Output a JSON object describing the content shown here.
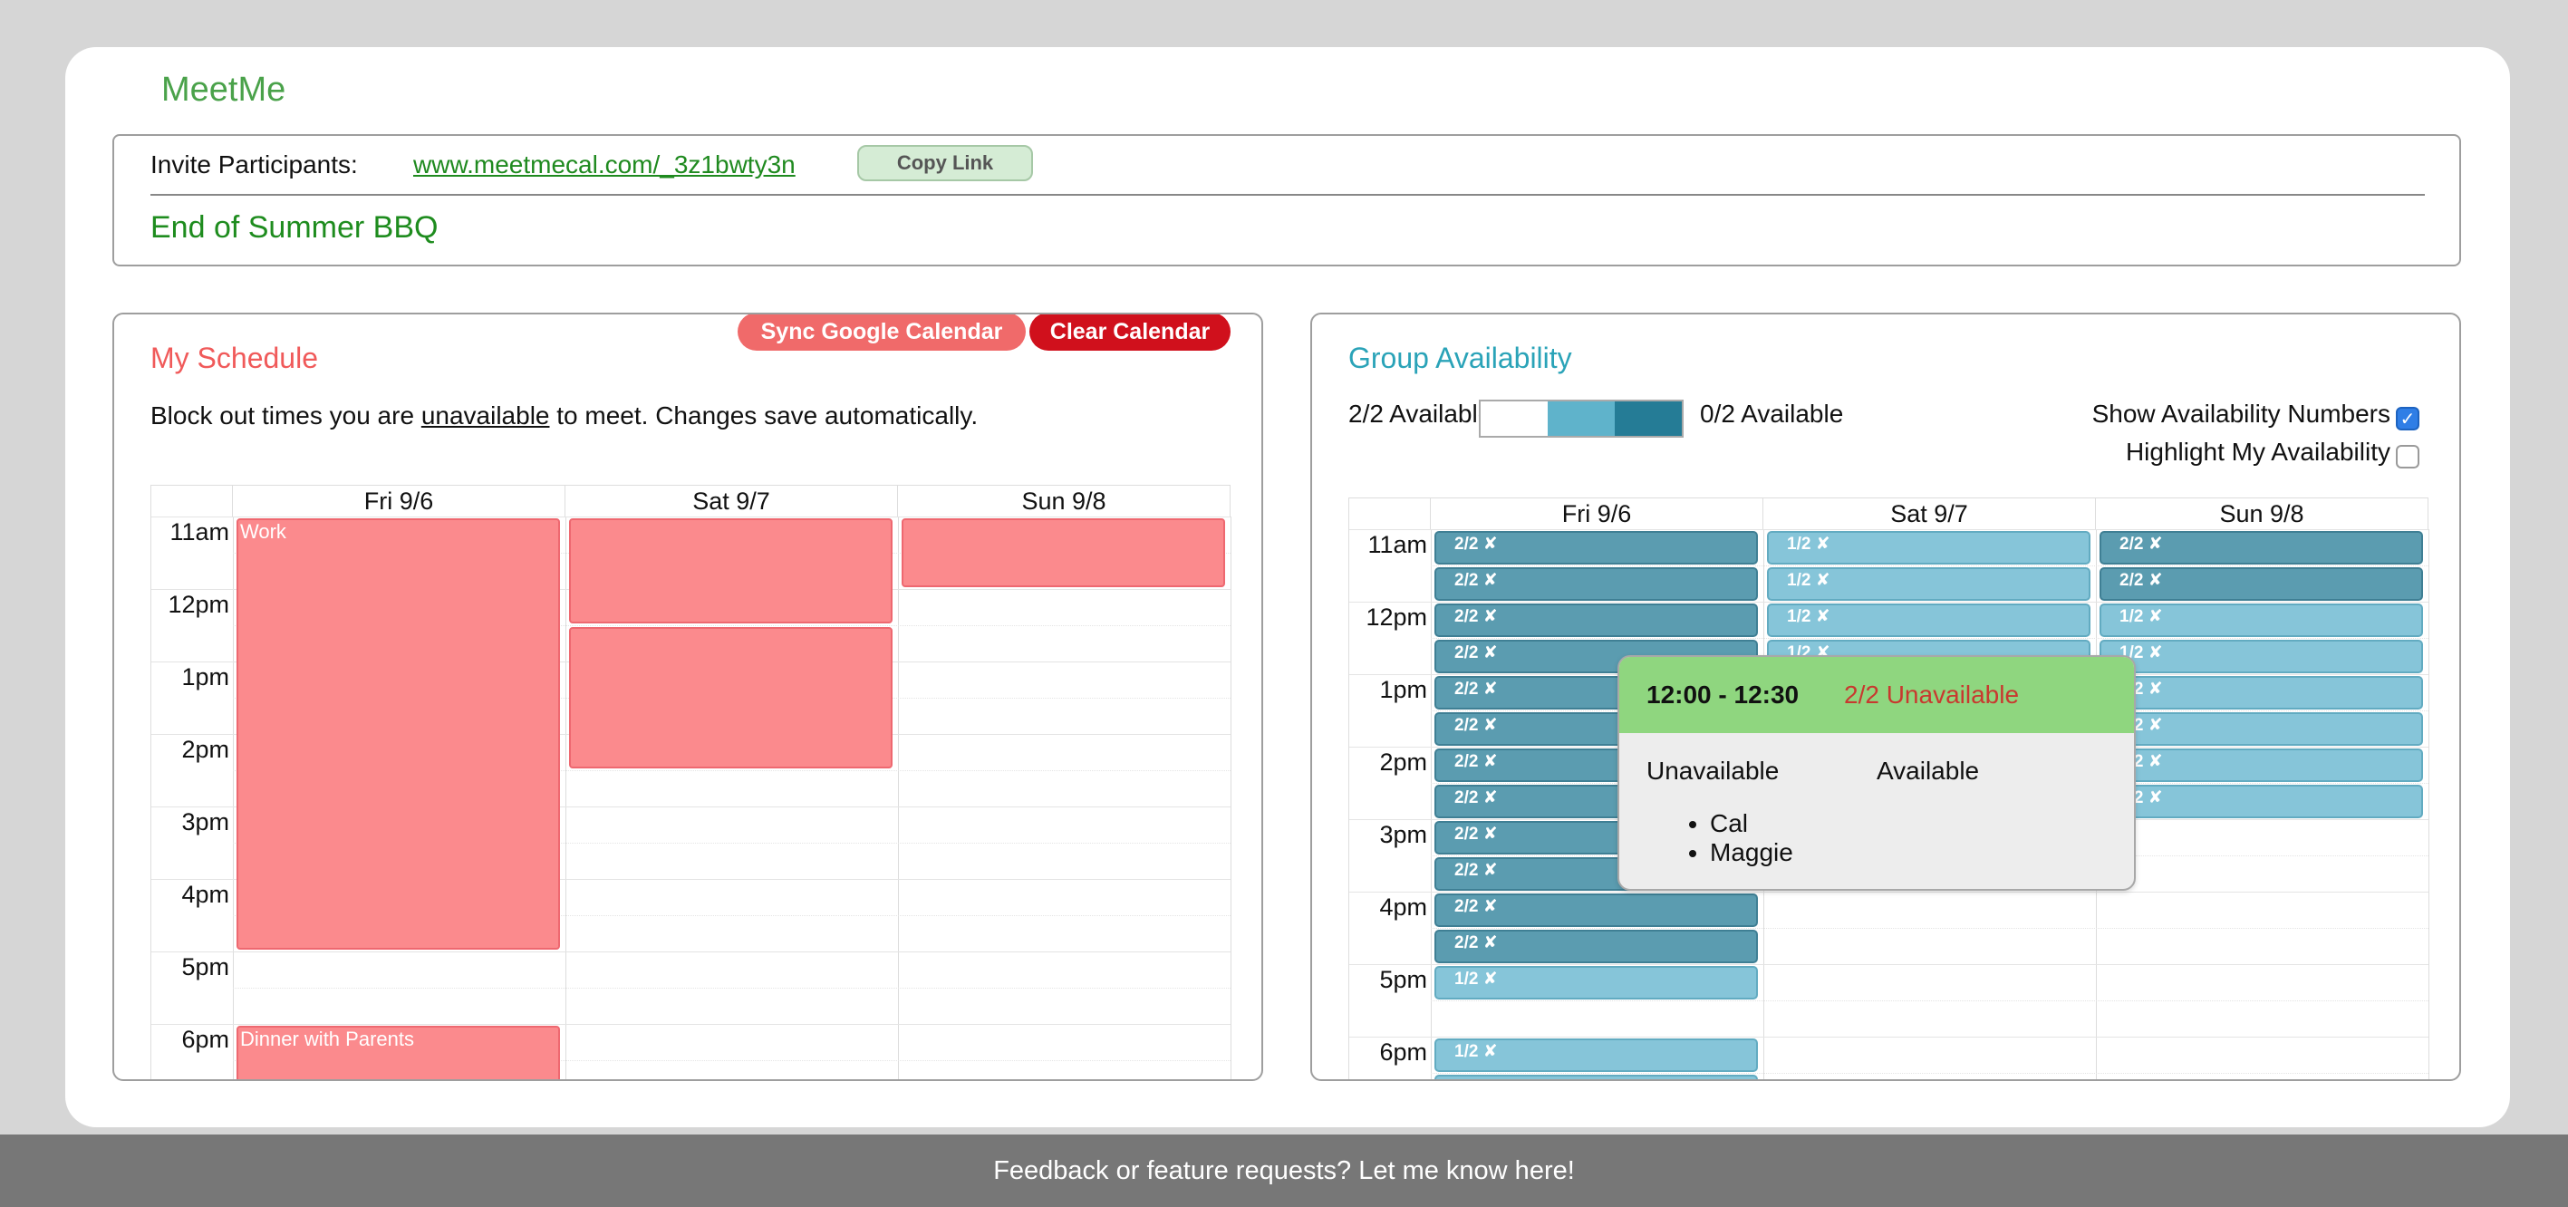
{
  "app": {
    "title": "MeetMe"
  },
  "invite": {
    "label": "Invite Participants:",
    "link": "www.meetmecal.com/_3z1bwty3n",
    "copy_label": "Copy Link"
  },
  "event": {
    "title": "End of Summer BBQ"
  },
  "schedule": {
    "title": "My Schedule",
    "sync_label": "Sync Google Calendar",
    "clear_label": "Clear Calendar",
    "instructions_pre": "Block out times you are ",
    "instructions_emph": "unavailable",
    "instructions_post": " to meet. Changes save automatically.",
    "days": [
      "Fri 9/6",
      "Sat 9/7",
      "Sun 9/8"
    ],
    "times": [
      "11am",
      "12pm",
      "1pm",
      "2pm",
      "3pm",
      "4pm",
      "5pm",
      "6pm"
    ],
    "blocks": [
      {
        "day": 0,
        "start": "11:00",
        "end": "17:00",
        "label": "Work"
      },
      {
        "day": 1,
        "start": "11:00",
        "end": "12:30",
        "label": ""
      },
      {
        "day": 1,
        "start": "12:30",
        "end": "14:30",
        "label": ""
      },
      {
        "day": 2,
        "start": "11:00",
        "end": "12:00",
        "label": ""
      },
      {
        "day": 0,
        "start": "18:00",
        "end": "",
        "label": "Dinner with Parents"
      }
    ]
  },
  "group": {
    "title": "Group Availability",
    "legend_left": "2/2 Available",
    "legend_right": "0/2 Available",
    "legend_colors": [
      "#ffffff",
      "#5fb3cb",
      "#257c96"
    ],
    "show_numbers_label": "Show Availability Numbers",
    "show_numbers_checked": true,
    "highlight_label": "Highlight My Availability",
    "highlight_checked": false,
    "days": [
      "Fri 9/6",
      "Sat 9/7",
      "Sun 9/8"
    ],
    "times": [
      "11am",
      "12pm",
      "1pm",
      "2pm",
      "3pm",
      "4pm",
      "5pm",
      "6pm"
    ],
    "slots": [
      {
        "day": 0,
        "start": "11:00",
        "label": "2/2 ✘"
      },
      {
        "day": 0,
        "start": "11:30",
        "label": "2/2 ✘"
      },
      {
        "day": 0,
        "start": "12:00",
        "label": "2/2 ✘"
      },
      {
        "day": 0,
        "start": "12:30",
        "label": "2/2 ✘"
      },
      {
        "day": 0,
        "start": "13:00",
        "label": "2/2 ✘"
      },
      {
        "day": 0,
        "start": "13:30",
        "label": "2/2 ✘"
      },
      {
        "day": 0,
        "start": "14:00",
        "label": "2/2 ✘"
      },
      {
        "day": 0,
        "start": "14:30",
        "label": "2/2 ✘"
      },
      {
        "day": 0,
        "start": "15:00",
        "label": "2/2 ✘"
      },
      {
        "day": 0,
        "start": "15:30",
        "label": "2/2 ✘"
      },
      {
        "day": 0,
        "start": "16:00",
        "label": "2/2 ✘"
      },
      {
        "day": 0,
        "start": "16:30",
        "label": "2/2 ✘"
      },
      {
        "day": 0,
        "start": "17:00",
        "label": "1/2 ✘"
      },
      {
        "day": 0,
        "start": "18:00",
        "label": "1/2 ✘"
      },
      {
        "day": 0,
        "start": "18:30",
        "label": ""
      },
      {
        "day": 1,
        "start": "11:00",
        "label": "1/2 ✘"
      },
      {
        "day": 1,
        "start": "11:30",
        "label": "1/2 ✘"
      },
      {
        "day": 1,
        "start": "12:00",
        "label": "1/2 ✘"
      },
      {
        "day": 1,
        "start": "12:30",
        "label": "1/2 ✘"
      },
      {
        "day": 1,
        "start": "13:00",
        "label": ""
      },
      {
        "day": 1,
        "start": "13:30",
        "label": ""
      },
      {
        "day": 1,
        "start": "14:00",
        "label": ""
      },
      {
        "day": 2,
        "start": "11:00",
        "label": "2/2 ✘"
      },
      {
        "day": 2,
        "start": "11:30",
        "label": "2/2 ✘"
      },
      {
        "day": 2,
        "start": "12:00",
        "label": "1/2 ✘"
      },
      {
        "day": 2,
        "start": "12:30",
        "label": "1/2 ✘"
      },
      {
        "day": 2,
        "start": "13:00",
        "label": "1/2 ✘"
      },
      {
        "day": 2,
        "start": "13:30",
        "label": "1/2 ✘"
      },
      {
        "day": 2,
        "start": "14:00",
        "label": "1/2 ✘"
      },
      {
        "day": 2,
        "start": "14:30",
        "label": "1/2 ✘"
      }
    ]
  },
  "tooltip": {
    "time": "12:00 - 12:30",
    "status": "2/2 Unavailable",
    "unavailable_label": "Unavailable",
    "available_label": "Available",
    "unavailable_people": [
      "Cal",
      "Maggie"
    ]
  },
  "footer": {
    "text": "Feedback or feature requests? Let me know here!"
  }
}
